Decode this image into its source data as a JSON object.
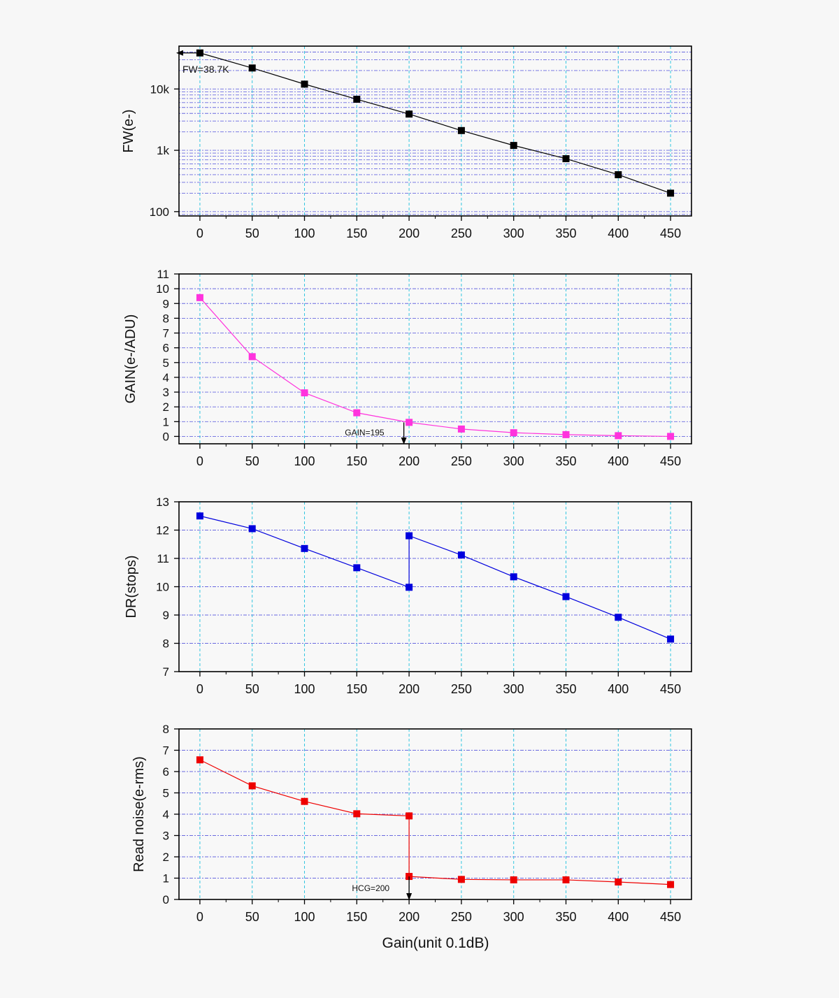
{
  "x_label": "Gain(unit 0.1dB)",
  "chart_data": [
    {
      "type": "line",
      "id": "fw",
      "ylabel": "FW(e-)",
      "yscale": "log",
      "ylim": [
        85,
        50000
      ],
      "yticks": [
        100,
        1000,
        10000
      ],
      "ytick_labels": [
        "100",
        "1k",
        "10k"
      ],
      "grid": true,
      "x": [
        0,
        50,
        100,
        150,
        200,
        250,
        300,
        350,
        400,
        450
      ],
      "xticks": [
        "0",
        "50",
        "100",
        "150",
        "200",
        "250",
        "300",
        "350",
        "400",
        "450"
      ],
      "xlim": [
        -20,
        470
      ],
      "series": [
        {
          "values": [
            38700,
            22000,
            12000,
            6800,
            3900,
            2100,
            1200,
            730,
            400,
            200
          ],
          "color": "#000000"
        }
      ],
      "annotation": {
        "text": "FW=38.7K",
        "x": 0,
        "y": 38700,
        "arrow": "left"
      }
    },
    {
      "type": "line",
      "id": "gain",
      "ylabel": "GAIN(e-/ADU)",
      "yscale": "linear",
      "ylim": [
        -0.5,
        11
      ],
      "yticks": [
        0,
        1,
        2,
        3,
        4,
        5,
        6,
        7,
        8,
        9,
        10,
        11
      ],
      "grid": true,
      "x": [
        0,
        50,
        100,
        150,
        200,
        250,
        300,
        350,
        400,
        450
      ],
      "xticks": [
        "0",
        "50",
        "100",
        "150",
        "200",
        "250",
        "300",
        "350",
        "400",
        "450"
      ],
      "xlim": [
        -20,
        470
      ],
      "series": [
        {
          "values": [
            9.4,
            5.4,
            2.95,
            1.6,
            0.95,
            0.5,
            0.25,
            0.12,
            0.05,
            0.0
          ],
          "color": "#ff33dd"
        }
      ],
      "annotation": {
        "text": "GAIN=195",
        "x": 195,
        "y": 0.95,
        "arrow": "down"
      }
    },
    {
      "type": "line",
      "id": "dr",
      "ylabel": "DR(stops)",
      "yscale": "linear",
      "ylim": [
        7,
        13
      ],
      "yticks": [
        7,
        8,
        9,
        10,
        11,
        12,
        13
      ],
      "grid": true,
      "x": [
        0,
        50,
        100,
        150,
        200,
        200,
        250,
        300,
        350,
        400,
        450
      ],
      "xticks": [
        "0",
        "50",
        "100",
        "150",
        "200",
        "250",
        "300",
        "350",
        "400",
        "450"
      ],
      "xlim": [
        -20,
        470
      ],
      "series": [
        {
          "values": [
            12.5,
            12.05,
            11.35,
            10.67,
            9.98,
            11.8,
            11.12,
            10.35,
            9.65,
            8.92,
            8.15
          ],
          "color": "#0000dd"
        }
      ]
    },
    {
      "type": "line",
      "id": "rn",
      "ylabel": "Read noise(e-rms)",
      "yscale": "linear",
      "ylim": [
        0,
        8
      ],
      "yticks": [
        0,
        1,
        2,
        3,
        4,
        5,
        6,
        7,
        8
      ],
      "grid": true,
      "x": [
        0,
        50,
        100,
        150,
        200,
        200,
        250,
        300,
        350,
        400,
        450
      ],
      "xticks": [
        "0",
        "50",
        "100",
        "150",
        "200",
        "250",
        "300",
        "350",
        "400",
        "450"
      ],
      "xlim": [
        -20,
        470
      ],
      "series": [
        {
          "values": [
            6.55,
            5.33,
            4.6,
            4.02,
            3.92,
            1.08,
            0.94,
            0.92,
            0.92,
            0.82,
            0.7
          ],
          "color": "#ee0000"
        }
      ],
      "annotation": {
        "text": "HCG=200",
        "x": 200,
        "y": 1.08,
        "arrow": "down"
      }
    }
  ]
}
